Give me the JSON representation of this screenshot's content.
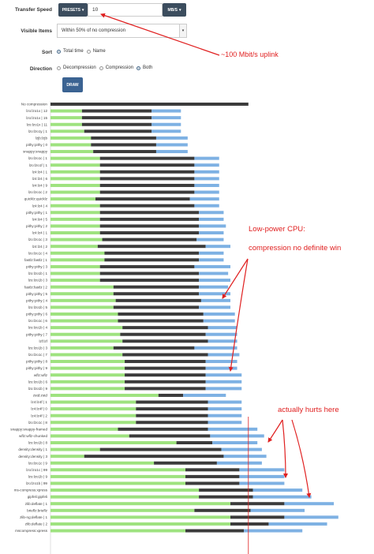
{
  "controls": {
    "transfer_speed_label": "Transfer Speed",
    "presets_label": "PRESETS",
    "speed_value": "10",
    "unit_label": "MB/S",
    "visible_items_label": "Visible Items",
    "visible_items_value": "Within 50% of no compression",
    "sort_label": "Sort",
    "sort_options": [
      "Total time",
      "Name"
    ],
    "sort_selected": 0,
    "direction_label": "Direction",
    "direction_options": [
      "Decompression",
      "Compression",
      "Both"
    ],
    "direction_selected": 2,
    "draw_label": "DRAW"
  },
  "annotations": {
    "uplink": "~100 Mbit/s uplink",
    "low_power_1": "Low-power CPU:",
    "low_power_2": "compression no definite win",
    "hurts": "actually hurts here"
  },
  "colors": {
    "compress": "#9ee27f",
    "transfer": "#3b3b3b",
    "decompress": "#7eb1e3",
    "accent": "#e02020",
    "button_dark": "#3c4d5e",
    "draw_button": "#3b6392"
  },
  "chart_data": {
    "type": "bar",
    "stacked": true,
    "orientation": "horizontal",
    "segment_order": [
      "compression",
      "transfer",
      "decompression"
    ],
    "reference_line": "No compression total time",
    "categories": [
      "No compression",
      "lzo:lzo1x | 12",
      "lzo:lzo1x | 15",
      "lzo:lzo1x | 11",
      "lzo:lzo1y | 1",
      "lzjb:lzjb",
      "pithy:pithy | 0",
      "snappy:snappy",
      "lzo:lzo1c | 1",
      "lzo:lzo1f | 1",
      "lz4:lz4 | 1",
      "lz4:lz4 | 6",
      "lz4:lz4 | 9",
      "lzo:lzo1c | 2",
      "quicklz:quicklz",
      "lz4:lz4 | 4",
      "pithy:pithy | 1",
      "lz4:lz4 | 5",
      "pithy:pithy | 2",
      "lz4:lz4 | 1",
      "lzo:lzo1c | 3",
      "lz4:lz4 | 2",
      "lzo:lzo1c | 4",
      "fastlz:fastlz | 1",
      "pithy:pithy | 3",
      "lzo:lzo1b | 1",
      "lzo:lzo1b | 3",
      "fastlz:fastlz | 2",
      "pithy:pithy | 5",
      "pithy:pithy | 4",
      "lzo:lzo1b | 5",
      "pithy:pithy | 6",
      "lzo:lzo1c | 6",
      "lzo:lzo1b | 4",
      "pithy:pithy | 7",
      "lzf:lzf",
      "lzo:lzo1b | 3",
      "lzo:lzo1c | 7",
      "pithy:pithy | 8",
      "pithy:pithy | 9",
      "wflz:wflz",
      "lzo:lzo1b | 6",
      "lzo:lzo1b | 9",
      "zstd:zstd",
      "lz4:lz4f | 1",
      "lz4:lz4f | 0",
      "lz4:lz4f | 2",
      "lzo:lzo1c | 8",
      "snappy:snappy-framed",
      "wflz:wflz-chunked",
      "lzo:lzo1b | 8",
      "density:density | 1",
      "density:density | 3",
      "lzo:lzo1c | 9",
      "lzo:lzo1c | 99",
      "lzo:lzo1b | 9",
      "lzo:lzo1b | 99",
      "ms-compress:xpress",
      "gipfeli:gipfeli",
      "zlib:deflate | 1",
      "brieflz:brieflz",
      "zlib-ng:deflate | 1",
      "zlib:deflate | 2",
      "mscompress:xpress"
    ],
    "series": [
      {
        "name": "compression",
        "values": [
          0,
          0.7,
          0.7,
          0.7,
          0.75,
          0.9,
          0.9,
          0.95,
          1.1,
          1.1,
          1.1,
          1.1,
          1.1,
          1.1,
          1.0,
          1.1,
          1.1,
          1.1,
          1.1,
          1.1,
          1.15,
          1.05,
          1.2,
          1.2,
          1.1,
          1.1,
          1.1,
          1.4,
          1.4,
          1.45,
          1.4,
          1.5,
          1.5,
          1.6,
          1.55,
          1.6,
          1.4,
          1.6,
          1.65,
          1.65,
          1.65,
          1.65,
          1.65,
          2.4,
          1.9,
          1.9,
          1.9,
          1.9,
          1.5,
          1.75,
          2.8,
          1.1,
          0.75,
          2.3,
          3.0,
          3.0,
          3.0,
          3.3,
          3.3,
          4.0,
          3.2,
          4.0,
          4.0,
          3.0
        ]
      },
      {
        "name": "transfer",
        "values": [
          4.4,
          1.55,
          1.55,
          1.55,
          1.5,
          1.45,
          1.45,
          1.4,
          2.1,
          2.1,
          2.1,
          2.1,
          2.1,
          2.1,
          2.1,
          2.1,
          2.2,
          2.2,
          2.2,
          2.2,
          2.1,
          2.4,
          2.1,
          2.1,
          2.1,
          2.2,
          2.2,
          1.9,
          1.9,
          1.9,
          1.9,
          1.9,
          1.9,
          1.9,
          1.9,
          1.9,
          1.8,
          1.9,
          1.8,
          1.8,
          1.8,
          1.8,
          1.8,
          0.55,
          1.6,
          1.6,
          1.6,
          1.6,
          2.0,
          1.8,
          0.8,
          2.7,
          3.1,
          1.4,
          1.2,
          1.2,
          1.2,
          1.2,
          1.2,
          1.2,
          1.25,
          1.2,
          0.85,
          1.3
        ]
      },
      {
        "name": "decompression",
        "values": [
          0,
          0.65,
          0.65,
          0.65,
          0.65,
          0.7,
          0.7,
          0.7,
          0.55,
          0.55,
          0.55,
          0.55,
          0.55,
          0.55,
          0.65,
          0.55,
          0.55,
          0.55,
          0.6,
          0.55,
          0.6,
          0.55,
          0.55,
          0.55,
          0.8,
          0.65,
          0.7,
          0.65,
          0.7,
          0.65,
          0.7,
          0.7,
          0.7,
          0.65,
          0.7,
          0.65,
          0.95,
          0.7,
          0.7,
          0.7,
          0.8,
          0.8,
          0.8,
          0.95,
          0.75,
          0.75,
          0.75,
          0.75,
          1.1,
          1.2,
          1.0,
          0.9,
          0.95,
          1.0,
          1.0,
          1.0,
          1.0,
          1.1,
          1.3,
          1.1,
          1.2,
          1.2,
          1.3,
          1.3
        ]
      }
    ]
  }
}
